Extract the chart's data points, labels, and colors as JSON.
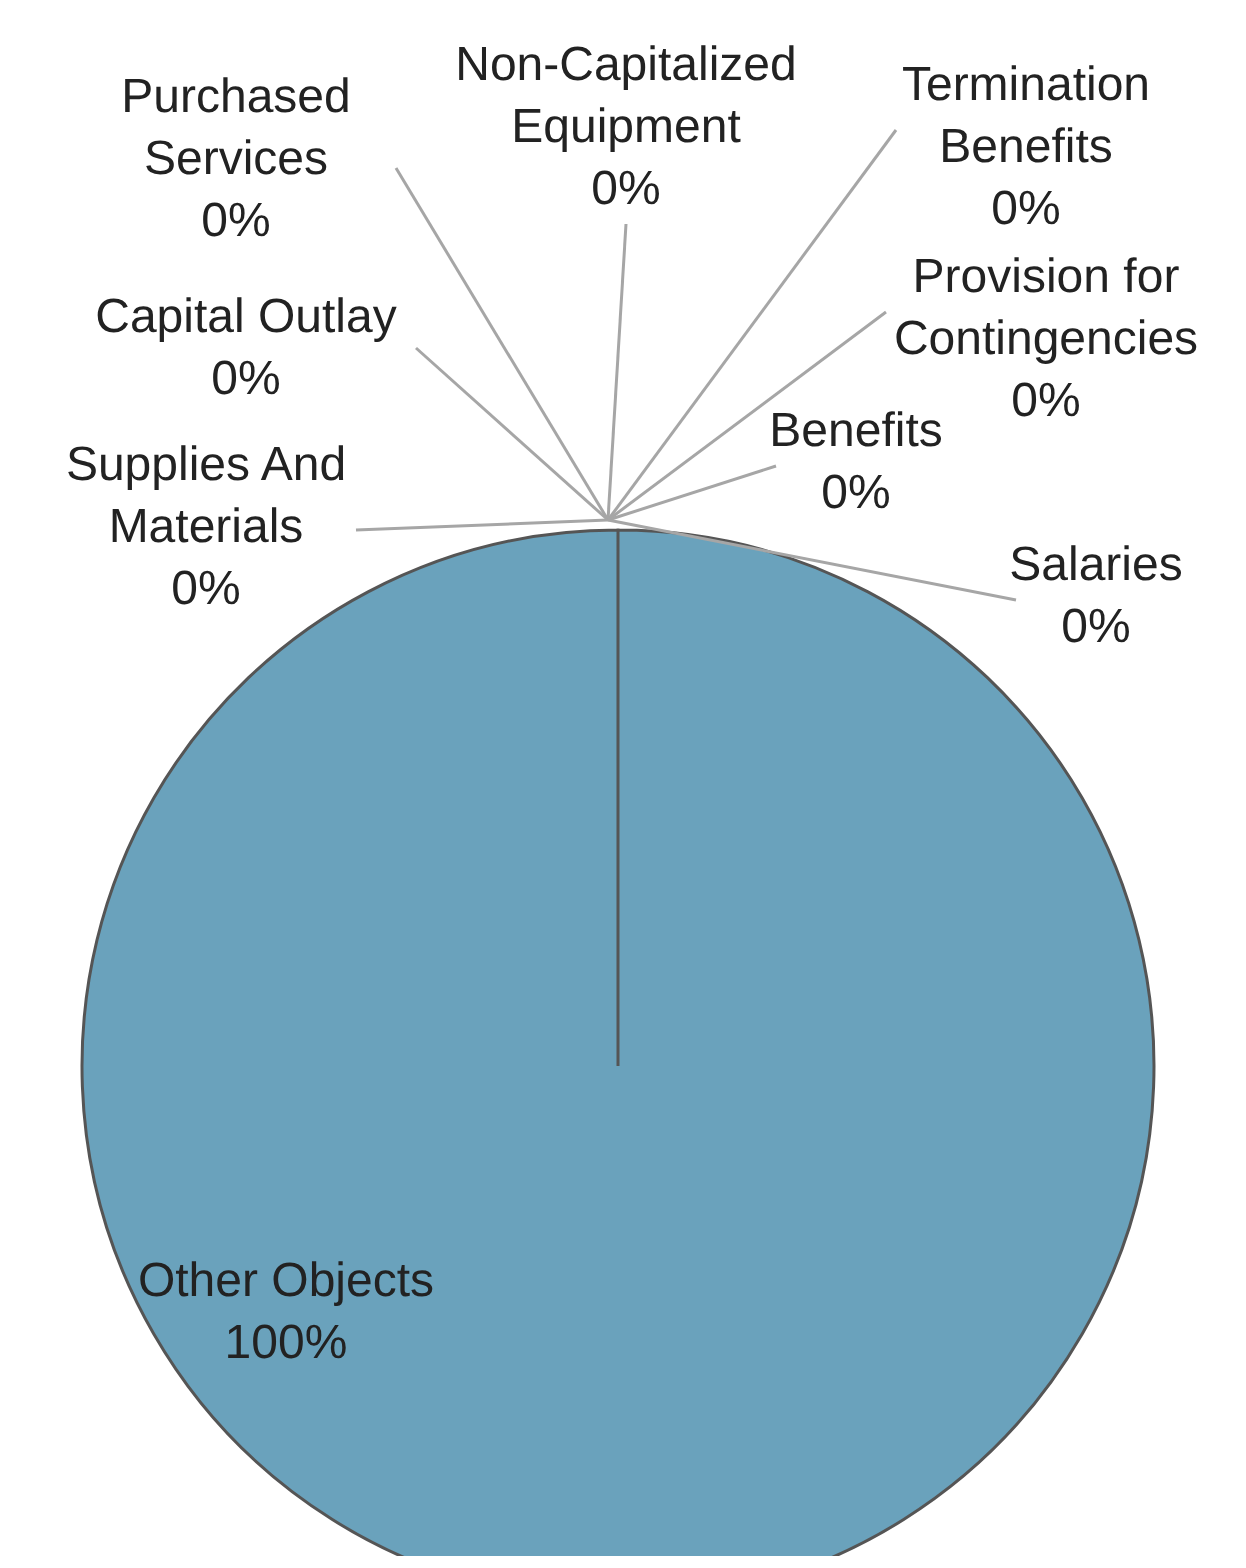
{
  "chart_data": {
    "type": "pie",
    "categories": [
      "Salaries",
      "Benefits",
      "Purchased Services",
      "Supplies And Materials",
      "Capital Outlay",
      "Non-Capitalized Equipment",
      "Termination Benefits",
      "Provision for Contingencies",
      "Other Objects"
    ],
    "values": [
      0,
      0,
      0,
      0,
      0,
      0,
      0,
      0,
      100
    ],
    "value_labels": [
      "0%",
      "0%",
      "0%",
      "0%",
      "0%",
      "0%",
      "0%",
      "0%",
      "100%"
    ],
    "colors": [
      "#6aa2bc",
      "#6aa2bc",
      "#6aa2bc",
      "#6aa2bc",
      "#6aa2bc",
      "#6aa2bc",
      "#6aa2bc",
      "#6aa2bc",
      "#6aa2bc"
    ]
  }
}
